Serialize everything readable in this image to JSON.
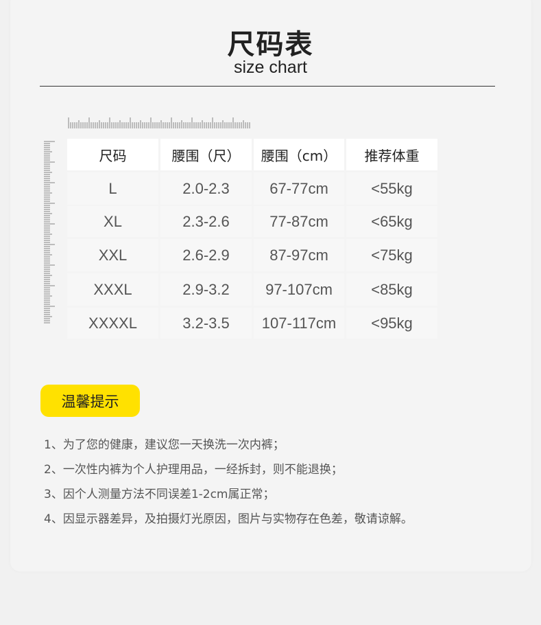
{
  "header": {
    "title": "尺码表",
    "subtitle": "size chart"
  },
  "table": {
    "columns": [
      "尺码",
      "腰围（尺）",
      "腰围（cm）",
      "推荐体重"
    ],
    "rows": [
      [
        "L",
        "2.0-2.3",
        "67-77cm",
        "<55kg"
      ],
      [
        "XL",
        "2.3-2.6",
        "77-87cm",
        "<65kg"
      ],
      [
        "XXL",
        "2.6-2.9",
        "87-97cm",
        "<75kg"
      ],
      [
        "XXXL",
        "2.9-3.2",
        "97-107cm",
        "<85kg"
      ],
      [
        "XXXXL",
        "3.2-3.5",
        "107-117cm",
        "<95kg"
      ]
    ]
  },
  "notice": {
    "label": "温馨提示",
    "items": [
      "1、为了您的健康，建议您一天换洗一次内裤；",
      "2、一次性内裤为个人护理用品，一经拆封，则不能退换；",
      "3、因个人测量方法不同误差1-2cm属正常；",
      "4、因显示器差异，及拍摄灯光原因，图片与实物存在色差，敬请谅解。"
    ]
  },
  "colors": {
    "accent": "#ffe100",
    "text": "#222222",
    "muted": "#555555"
  }
}
